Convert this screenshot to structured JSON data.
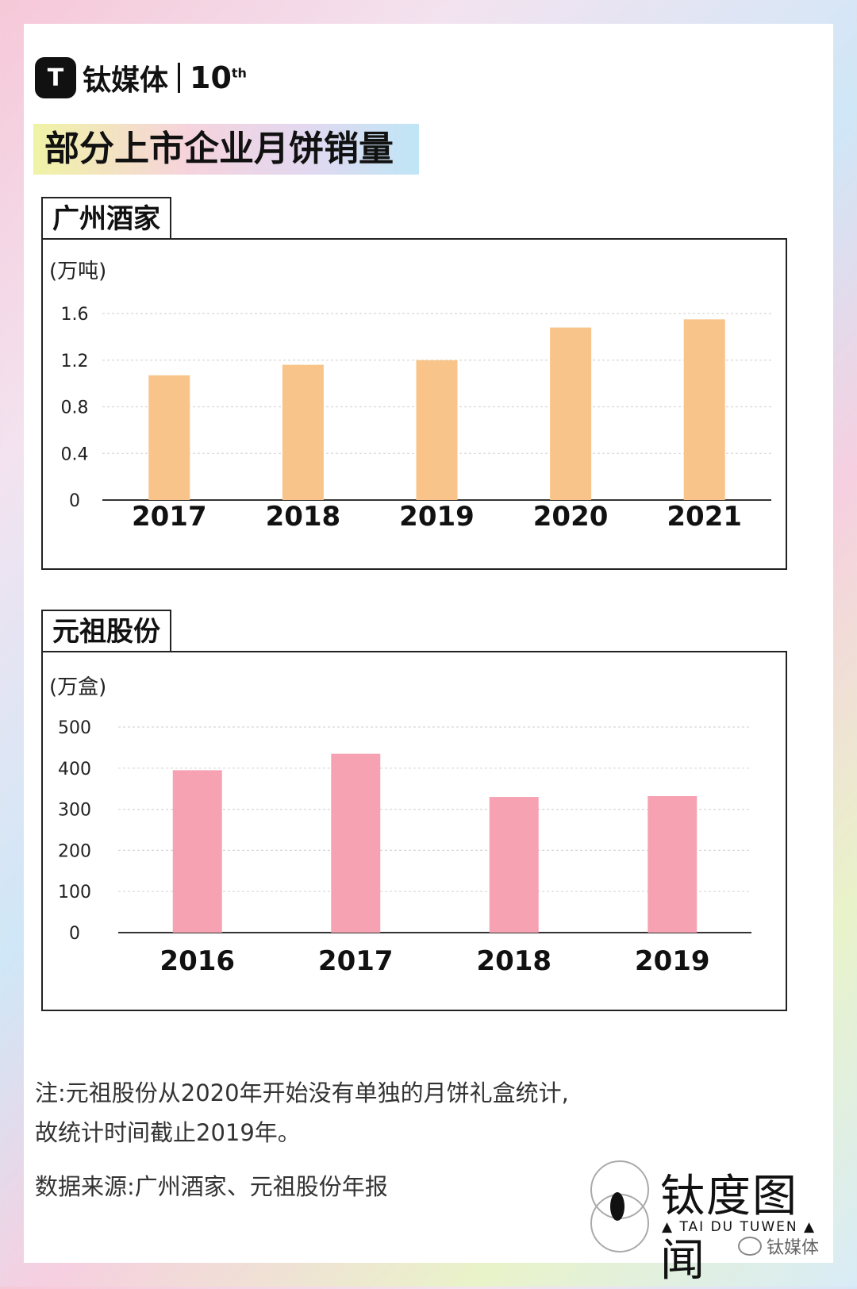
{
  "brand": {
    "logo_letter": "T",
    "name": "钛媒体",
    "ten": "10",
    "ten_sup": "th"
  },
  "title": "部分上市企业月饼销量",
  "charts": [
    {
      "tab_label": "广州酒家"
    },
    {
      "tab_label": "元祖股份"
    }
  ],
  "chart_data": [
    {
      "type": "bar",
      "title": "广州酒家",
      "ylabel": "(万吨)",
      "categories": [
        "2017",
        "2018",
        "2019",
        "2020",
        "2021"
      ],
      "values": [
        1.07,
        1.16,
        1.2,
        1.48,
        1.55
      ],
      "yticks": [
        "0",
        "0.4",
        "0.8",
        "1.2",
        "1.6"
      ],
      "ylim": [
        0,
        1.6
      ],
      "grid": true,
      "color": "#f9c48a"
    },
    {
      "type": "bar",
      "title": "元祖股份",
      "ylabel": "(万盒)",
      "categories": [
        "2016",
        "2017",
        "2018",
        "2019"
      ],
      "values": [
        395,
        435,
        330,
        332
      ],
      "yticks": [
        "0",
        "100",
        "200",
        "300",
        "400",
        "500"
      ],
      "ylim": [
        0,
        500
      ],
      "grid": true,
      "color": "#f6a2b2"
    }
  ],
  "notes": {
    "line1": "注:元祖股份从2020年开始没有单独的月饼礼盒统计,",
    "line2": "故统计时间截止2019年。",
    "source": "数据来源:广州酒家、元祖股份年报"
  },
  "footer": {
    "tai_name": "钛度图闻",
    "tai_en": "▲ TAI DU TUWEN ▲",
    "wechat": "钛媒体"
  }
}
